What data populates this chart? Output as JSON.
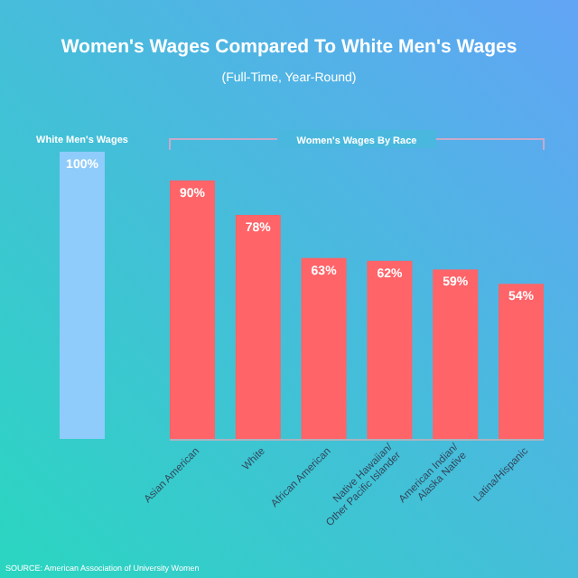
{
  "chart_data": {
    "type": "bar",
    "title": "Women's Wages Compared To White Men's Wages",
    "subtitle": "(Full-Time, Year-Round)",
    "categories": [
      null,
      "Asian American",
      "White",
      "African American",
      "Native Hawaiian/\nOther Pacific Islander",
      "American Indian/\nAlaska Native",
      "Latina/Hispanic"
    ],
    "values": [
      100,
      90,
      78,
      63,
      62,
      59,
      54
    ],
    "value_labels": [
      "100%",
      "90%",
      "78%",
      "63%",
      "62%",
      "59%",
      "54%"
    ],
    "colors": [
      "#8fcbfb",
      "#fe6468",
      "#fe6468",
      "#fe6468",
      "#fe6468",
      "#fe6468",
      "#fe6468"
    ],
    "annotations": [
      "White Men's Wages",
      "Women's Wages By Race",
      "SOURCE: American Association of University Women"
    ]
  }
}
